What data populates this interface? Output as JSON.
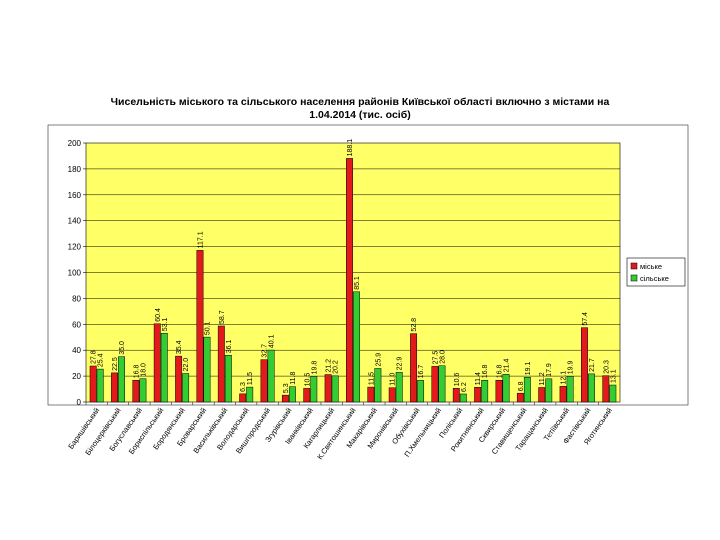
{
  "chart_data": {
    "type": "bar",
    "title_line1": "Чисельність міського та сільського населення районів Київської області включно з містами на",
    "title_line2": "1.04.2014 (тис. осіб)",
    "xlabel": "",
    "ylabel": "",
    "ylim": [
      0,
      200
    ],
    "yticks": [
      "0",
      "20",
      "40",
      "60",
      "80",
      "100",
      "120",
      "140",
      "160",
      "180",
      "200"
    ],
    "grid": true,
    "legend_position": "right",
    "plot_color": "#ffff66",
    "categories": [
      "Баришівський",
      "Білоцерківський",
      "Богуславський",
      "Бориспільський",
      "Бородянський",
      "Броварський",
      "Васильківський",
      "Володарський",
      "Вишгородський",
      "Згурівський",
      "Іванківський",
      "Кагарлицький",
      "К.Святошинський",
      "Макарівський",
      "Миронівський",
      "Обухівський",
      "П.Хмельницький",
      "Поліський",
      "Рокитнянський",
      "Сквирський",
      "Ставищенський",
      "Таращанський",
      "Тетіївський",
      "Фастівський",
      "Яготинський"
    ],
    "series": [
      {
        "name": "міське",
        "color": "#e31a1c",
        "values": [
          27.8,
          22.5,
          16.8,
          60.4,
          35.4,
          117.1,
          58.7,
          6.3,
          32.7,
          5.3,
          10.5,
          21.2,
          188.1,
          11.5,
          11.0,
          52.8,
          27.5,
          10.6,
          11.4,
          16.8,
          6.8,
          11.2,
          12.1,
          57.4,
          20.3
        ],
        "labels": [
          "27.8",
          "22.5",
          "16.8",
          "60.4",
          "35.4",
          "117.1",
          "58.7",
          "6.3",
          "32.7",
          "5.3",
          "10.5",
          "21.2",
          "188.1",
          "11.5",
          "11.0",
          "52.8",
          "27.5",
          "10.6",
          "11.4",
          "16.8",
          "6.8",
          "11.2",
          "12.1",
          "57.4",
          "20.3"
        ]
      },
      {
        "name": "сільське",
        "color": "#33cc33",
        "values": [
          25.4,
          35.0,
          18.0,
          53.1,
          22.0,
          50.1,
          36.1,
          11.5,
          40.1,
          11.8,
          19.8,
          20.2,
          85.1,
          25.9,
          22.9,
          16.7,
          28.0,
          6.2,
          16.8,
          21.4,
          19.1,
          17.9,
          19.9,
          21.7,
          13.1
        ],
        "labels": [
          "25.4",
          "35.0",
          "18.0",
          "53.1",
          "22.0",
          "50.1",
          "36.1",
          "11.5",
          "40.1",
          "11.8",
          "19.8",
          "20.2",
          "85.1",
          "25.9",
          "22.9",
          "16.7",
          "28.0",
          "6.2",
          "16.8",
          "21.4",
          "19.1",
          "17.9",
          "19.9",
          "21.7",
          "13.1"
        ]
      }
    ]
  }
}
